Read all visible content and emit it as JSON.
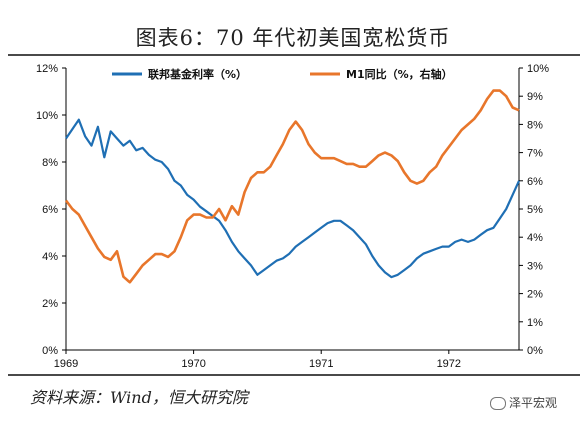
{
  "title": "图表6：70 年代初美国宽松货币",
  "source": "资料来源：Wind，恒大研究院",
  "watermark": "泽平宏观",
  "colors": {
    "fed": "#1f6fb4",
    "m1": "#e8762b",
    "axis": "#000000"
  },
  "chart_data": {
    "type": "line",
    "title": "",
    "xlabel": "",
    "ylabel": "",
    "x_tick_labels": [
      "1969",
      "1970",
      "1971",
      "1972"
    ],
    "xlim": [
      1969.0,
      1972.55
    ],
    "y_left": {
      "ylim": [
        0,
        12
      ],
      "tick_labels": [
        "0%",
        "2%",
        "4%",
        "6%",
        "8%",
        "10%",
        "12%"
      ]
    },
    "y_right": {
      "ylim": [
        0,
        10
      ],
      "tick_labels": [
        "0%",
        "1%",
        "2%",
        "3%",
        "4%",
        "5%",
        "6%",
        "7%",
        "8%",
        "9%",
        "10%"
      ]
    },
    "legend_placement": "top",
    "grid": false,
    "series": [
      {
        "name": "联邦基金利率（%）",
        "axis": "left",
        "color": "#1f6fb4",
        "x": [
          1969.0,
          1969.05,
          1969.1,
          1969.15,
          1969.2,
          1969.25,
          1969.3,
          1969.35,
          1969.4,
          1969.45,
          1969.5,
          1969.55,
          1969.6,
          1969.65,
          1969.7,
          1969.75,
          1969.8,
          1969.85,
          1969.9,
          1969.95,
          1970.0,
          1970.05,
          1970.1,
          1970.15,
          1970.2,
          1970.25,
          1970.3,
          1970.35,
          1970.4,
          1970.45,
          1970.5,
          1970.55,
          1970.6,
          1970.65,
          1970.7,
          1970.75,
          1970.8,
          1970.85,
          1970.9,
          1970.95,
          1971.0,
          1971.05,
          1971.1,
          1971.15,
          1971.2,
          1971.25,
          1971.3,
          1971.35,
          1971.4,
          1971.45,
          1971.5,
          1971.55,
          1971.6,
          1971.65,
          1971.7,
          1971.75,
          1971.8,
          1971.85,
          1971.9,
          1971.95,
          1972.0,
          1972.05,
          1972.1,
          1972.15,
          1972.2,
          1972.25,
          1972.3,
          1972.35,
          1972.4,
          1972.45,
          1972.5,
          1972.55
        ],
        "y": [
          9.0,
          9.4,
          9.8,
          9.1,
          8.7,
          9.5,
          8.2,
          9.3,
          9.0,
          8.7,
          8.9,
          8.5,
          8.6,
          8.3,
          8.1,
          8.0,
          7.7,
          7.2,
          7.0,
          6.6,
          6.4,
          6.1,
          5.9,
          5.7,
          5.5,
          5.1,
          4.6,
          4.2,
          3.9,
          3.6,
          3.2,
          3.4,
          3.6,
          3.8,
          3.9,
          4.1,
          4.4,
          4.6,
          4.8,
          5.0,
          5.2,
          5.4,
          5.5,
          5.5,
          5.3,
          5.1,
          4.8,
          4.5,
          4.0,
          3.6,
          3.3,
          3.1,
          3.2,
          3.4,
          3.6,
          3.9,
          4.1,
          4.2,
          4.3,
          4.4,
          4.4,
          4.6,
          4.7,
          4.6,
          4.7,
          4.9,
          5.1,
          5.2,
          5.6,
          6.0,
          6.6,
          7.2
        ]
      },
      {
        "name": "M1同比（%，右轴）",
        "axis": "right",
        "color": "#e8762b",
        "x": [
          1969.0,
          1969.05,
          1969.1,
          1969.15,
          1969.2,
          1969.25,
          1969.3,
          1969.35,
          1969.4,
          1969.45,
          1969.5,
          1969.55,
          1969.6,
          1969.65,
          1969.7,
          1969.75,
          1969.8,
          1969.85,
          1969.9,
          1969.95,
          1970.0,
          1970.05,
          1970.1,
          1970.15,
          1970.2,
          1970.25,
          1970.3,
          1970.35,
          1970.4,
          1970.45,
          1970.5,
          1970.55,
          1970.6,
          1970.65,
          1970.7,
          1970.75,
          1970.8,
          1970.85,
          1970.9,
          1970.95,
          1971.0,
          1971.05,
          1971.1,
          1971.15,
          1971.2,
          1971.25,
          1971.3,
          1971.35,
          1971.4,
          1971.45,
          1971.5,
          1971.55,
          1971.6,
          1971.65,
          1971.7,
          1971.75,
          1971.8,
          1971.85,
          1971.9,
          1971.95,
          1972.0,
          1972.05,
          1972.1,
          1972.15,
          1972.2,
          1972.25,
          1972.3,
          1972.35,
          1972.4,
          1972.45,
          1972.5,
          1972.55
        ],
        "y": [
          5.3,
          5.0,
          4.8,
          4.4,
          4.0,
          3.6,
          3.3,
          3.2,
          3.5,
          2.6,
          2.4,
          2.7,
          3.0,
          3.2,
          3.4,
          3.4,
          3.3,
          3.5,
          4.0,
          4.6,
          4.8,
          4.8,
          4.7,
          4.7,
          5.0,
          4.6,
          5.1,
          4.8,
          5.6,
          6.1,
          6.3,
          6.3,
          6.5,
          6.9,
          7.3,
          7.8,
          8.1,
          7.8,
          7.3,
          7.0,
          6.8,
          6.8,
          6.8,
          6.7,
          6.6,
          6.6,
          6.5,
          6.5,
          6.7,
          6.9,
          7.0,
          6.9,
          6.7,
          6.3,
          6.0,
          5.9,
          6.0,
          6.3,
          6.5,
          6.9,
          7.2,
          7.5,
          7.8,
          8.0,
          8.2,
          8.5,
          8.9,
          9.2,
          9.2,
          9.0,
          8.6,
          8.5
        ]
      }
    ]
  }
}
